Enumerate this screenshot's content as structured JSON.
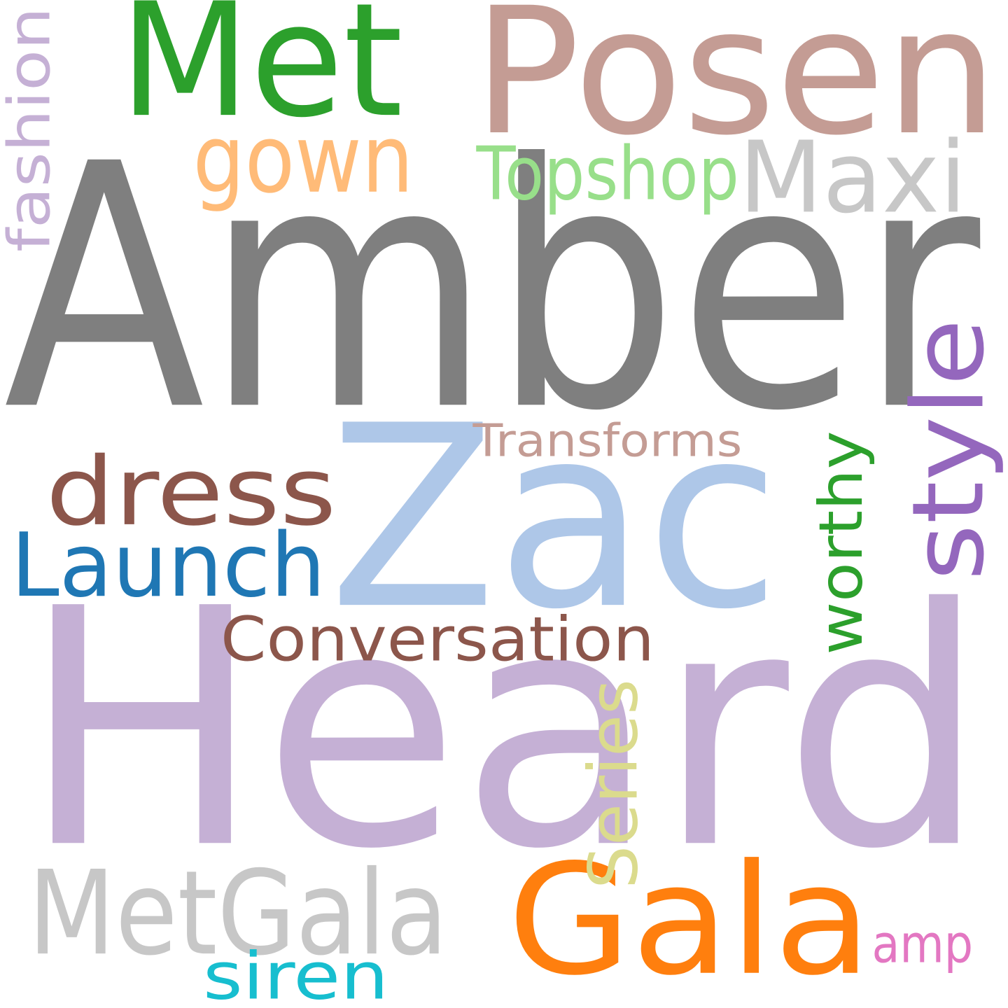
{
  "words": {
    "amber": {
      "text": "Amber",
      "color": "#7f7f7f",
      "orientation": "horizontal"
    },
    "heard": {
      "text": "Heard",
      "color": "#c5b0d5",
      "orientation": "horizontal"
    },
    "zac": {
      "text": "Zac",
      "color": "#aec7e8",
      "orientation": "horizontal"
    },
    "posen": {
      "text": "Posen",
      "color": "#c49c94",
      "orientation": "horizontal"
    },
    "met": {
      "text": "Met",
      "color": "#2ca02c",
      "orientation": "horizontal"
    },
    "gala": {
      "text": "Gala",
      "color": "#ff7f0e",
      "orientation": "horizontal"
    },
    "metgala": {
      "text": "MetGala",
      "color": "#c7c7c7",
      "orientation": "horizontal"
    },
    "maxi": {
      "text": "Maxi",
      "color": "#c7c7c7",
      "orientation": "horizontal"
    },
    "dress": {
      "text": "dress",
      "color": "#8c564b",
      "orientation": "horizontal"
    },
    "gown": {
      "text": "gown",
      "color": "#ffbb78",
      "orientation": "horizontal"
    },
    "launch": {
      "text": "Launch",
      "color": "#1f77b4",
      "orientation": "horizontal"
    },
    "style": {
      "text": "style",
      "color": "#9467bd",
      "orientation": "vertical"
    },
    "conversation": {
      "text": "Conversation",
      "color": "#8c564b",
      "orientation": "horizontal"
    },
    "topshop": {
      "text": "Topshop",
      "color": "#98df8a",
      "orientation": "horizontal"
    },
    "worthy": {
      "text": "worthy",
      "color": "#2ca02c",
      "orientation": "vertical"
    },
    "series": {
      "text": "Series",
      "color": "#dbdb8d",
      "orientation": "vertical"
    },
    "fashion": {
      "text": "fashion",
      "color": "#c5b0d5",
      "orientation": "vertical"
    },
    "transforms": {
      "text": "Transforms",
      "color": "#c49c94",
      "orientation": "horizontal"
    },
    "siren": {
      "text": "siren",
      "color": "#17becf",
      "orientation": "horizontal"
    },
    "amp": {
      "text": "amp",
      "color": "#e377c2",
      "orientation": "horizontal"
    }
  }
}
